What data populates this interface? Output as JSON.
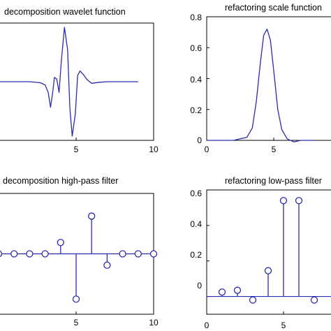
{
  "colors": {
    "line": "#2b2bb0",
    "axis": "#000000",
    "background": "#ffffff"
  },
  "chart_data": [
    {
      "id": "tl",
      "type": "line",
      "title": "decomposition wavelet function",
      "xlim": [
        0,
        10
      ],
      "ylim": [
        -1.1,
        1.1
      ],
      "xticks": [
        5,
        10
      ],
      "yticks": [],
      "series": [
        {
          "x": [
            0,
            1,
            2,
            2.7,
            3.0,
            3.2,
            3.35,
            3.5,
            3.6,
            3.75,
            3.9,
            4.05,
            4.25,
            4.45,
            4.6,
            4.75,
            4.95,
            5.1,
            5.25,
            5.45,
            5.7,
            6.0,
            6.5,
            7.0,
            8.0,
            9.0
          ],
          "y": [
            0,
            0,
            0,
            -0.02,
            -0.06,
            -0.2,
            -0.48,
            -0.18,
            0.08,
            0.05,
            -0.2,
            0.4,
            1.02,
            0.6,
            -0.5,
            -1.02,
            -0.6,
            0.12,
            0.2,
            0.14,
            0.04,
            -0.03,
            -0.01,
            0,
            0,
            0
          ]
        }
      ]
    },
    {
      "id": "tr",
      "type": "line",
      "title": "refactoring scale function",
      "xlim": [
        0,
        10
      ],
      "ylim": [
        0,
        0.8
      ],
      "xticks": [
        0,
        5
      ],
      "yticks": [
        0,
        0.2,
        0.4,
        0.6,
        0.8
      ],
      "series": [
        {
          "x": [
            0,
            1,
            2,
            2.5,
            3.0,
            3.4,
            3.7,
            4.0,
            4.25,
            4.5,
            4.75,
            5.0,
            5.3,
            5.6,
            6.0,
            6.5,
            7.0,
            7.5,
            8.0
          ],
          "y": [
            0,
            0,
            0,
            0.01,
            0.02,
            0.08,
            0.25,
            0.5,
            0.68,
            0.72,
            0.65,
            0.45,
            0.2,
            0.07,
            0.01,
            -0.01,
            0,
            0,
            0
          ]
        }
      ]
    },
    {
      "id": "bl",
      "type": "stem",
      "title": "decomposition high-pass filter",
      "xlim": [
        0,
        10
      ],
      "ylim": [
        -0.8,
        0.8
      ],
      "xticks": [
        5,
        10
      ],
      "yticks": [],
      "series": [
        {
          "x": [
            0,
            1,
            2,
            3,
            4,
            5,
            6,
            7,
            8,
            9,
            10
          ],
          "y": [
            0,
            0,
            0,
            0,
            0.15,
            -0.6,
            0.5,
            -0.15,
            0,
            0,
            0
          ]
        }
      ]
    },
    {
      "id": "br",
      "type": "stem",
      "title": "refactoring low-pass filter",
      "xlim": [
        0,
        10
      ],
      "ylim": [
        -0.1,
        0.6
      ],
      "xticks": [
        0,
        5
      ],
      "yticks": [
        0,
        0.2,
        0.4,
        0.6
      ],
      "series": [
        {
          "x": [
            1,
            2,
            3,
            4,
            5,
            6,
            7
          ],
          "y": [
            0.025,
            0.035,
            -0.02,
            0.145,
            0.54,
            0.54,
            -0.02
          ]
        }
      ]
    }
  ]
}
